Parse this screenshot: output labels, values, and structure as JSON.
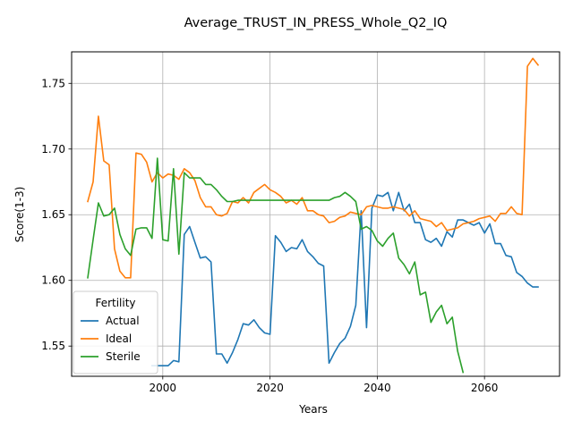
{
  "chart_data": {
    "type": "line",
    "title": "Average_TRUST_IN_PRESS_Whole_Q2_IQ",
    "xlabel": "Years",
    "ylabel": "Score(1-3)",
    "xlim": [
      1983,
      2074
    ],
    "ylim": [
      1.527,
      1.774
    ],
    "x_ticks": [
      2000,
      2020,
      2040,
      2060
    ],
    "y_ticks": [
      1.55,
      1.6,
      1.65,
      1.7,
      1.75
    ],
    "grid": true,
    "legend": {
      "title": "Fertility",
      "position": "lower-left"
    },
    "series": [
      {
        "name": "Actual",
        "color": "#1f77b4",
        "x": [
          1998,
          1999,
          2000,
          2001,
          2002,
          2003,
          2004,
          2005,
          2006,
          2007,
          2008,
          2009,
          2010,
          2011,
          2012,
          2013,
          2014,
          2015,
          2016,
          2017,
          2018,
          2019,
          2020,
          2021,
          2022,
          2023,
          2024,
          2025,
          2026,
          2027,
          2028,
          2029,
          2030,
          2031,
          2032,
          2033,
          2034,
          2035,
          2036,
          2037,
          2038,
          2039,
          2040,
          2041,
          2042,
          2043,
          2044,
          2045,
          2046,
          2047,
          2048,
          2049,
          2050,
          2051,
          2052,
          2053,
          2054,
          2055,
          2056,
          2057,
          2058,
          2059,
          2060,
          2061,
          2062,
          2063,
          2064,
          2065,
          2066,
          2067,
          2068,
          2069,
          2070
        ],
        "values": [
          1.535,
          1.535,
          1.535,
          1.535,
          1.539,
          1.538,
          1.635,
          1.641,
          1.629,
          1.617,
          1.618,
          1.614,
          1.544,
          1.544,
          1.537,
          1.545,
          1.555,
          1.567,
          1.566,
          1.57,
          1.564,
          1.56,
          1.559,
          1.634,
          1.629,
          1.622,
          1.625,
          1.624,
          1.631,
          1.622,
          1.618,
          1.613,
          1.611,
          1.537,
          1.545,
          1.552,
          1.556,
          1.565,
          1.581,
          1.653,
          1.564,
          1.655,
          1.665,
          1.664,
          1.667,
          1.653,
          1.667,
          1.653,
          1.658,
          1.644,
          1.644,
          1.631,
          1.629,
          1.632,
          1.626,
          1.637,
          1.633,
          1.646,
          1.646,
          1.644,
          1.642,
          1.644,
          1.636,
          1.643,
          1.628,
          1.628,
          1.619,
          1.618,
          1.606,
          1.603,
          1.598,
          1.595,
          1.595
        ]
      },
      {
        "name": "Ideal",
        "color": "#ff7f0e",
        "x": [
          1986,
          1987,
          1988,
          1989,
          1990,
          1991,
          1992,
          1993,
          1994,
          1995,
          1996,
          1997,
          1998,
          1999,
          2000,
          2001,
          2002,
          2003,
          2004,
          2005,
          2006,
          2007,
          2008,
          2009,
          2010,
          2011,
          2012,
          2013,
          2014,
          2015,
          2016,
          2017,
          2018,
          2019,
          2020,
          2021,
          2022,
          2023,
          2024,
          2025,
          2026,
          2027,
          2028,
          2029,
          2030,
          2031,
          2032,
          2033,
          2034,
          2035,
          2036,
          2037,
          2038,
          2039,
          2040,
          2041,
          2042,
          2043,
          2044,
          2045,
          2046,
          2047,
          2048,
          2049,
          2050,
          2051,
          2052,
          2053,
          2054,
          2055,
          2056,
          2057,
          2058,
          2059,
          2060,
          2061,
          2062,
          2063,
          2064,
          2065,
          2066,
          2067,
          2068,
          2069,
          2070
        ],
        "values": [
          1.66,
          1.675,
          1.725,
          1.691,
          1.688,
          1.624,
          1.607,
          1.602,
          1.602,
          1.697,
          1.696,
          1.69,
          1.675,
          1.682,
          1.678,
          1.681,
          1.68,
          1.677,
          1.685,
          1.682,
          1.676,
          1.663,
          1.656,
          1.656,
          1.65,
          1.649,
          1.651,
          1.66,
          1.659,
          1.663,
          1.659,
          1.667,
          1.67,
          1.673,
          1.669,
          1.667,
          1.664,
          1.659,
          1.661,
          1.658,
          1.663,
          1.653,
          1.653,
          1.65,
          1.649,
          1.644,
          1.645,
          1.648,
          1.649,
          1.652,
          1.651,
          1.65,
          1.656,
          1.657,
          1.656,
          1.655,
          1.655,
          1.656,
          1.655,
          1.654,
          1.649,
          1.653,
          1.647,
          1.646,
          1.645,
          1.641,
          1.644,
          1.638,
          1.639,
          1.64,
          1.643,
          1.644,
          1.645,
          1.647,
          1.648,
          1.649,
          1.645,
          1.651,
          1.651,
          1.656,
          1.651,
          1.65,
          1.763,
          1.769,
          1.764
        ]
      },
      {
        "name": "Sterile",
        "color": "#2ca02c",
        "x": [
          1986,
          1987,
          1988,
          1989,
          1990,
          1991,
          1992,
          1993,
          1994,
          1995,
          1996,
          1997,
          1998,
          1999,
          2000,
          2001,
          2002,
          2003,
          2004,
          2005,
          2006,
          2007,
          2008,
          2009,
          2010,
          2011,
          2012,
          2013,
          2014,
          2015,
          2016,
          2017,
          2018,
          2019,
          2020,
          2021,
          2022,
          2023,
          2024,
          2025,
          2026,
          2027,
          2028,
          2029,
          2030,
          2031,
          2032,
          2033,
          2034,
          2035,
          2036,
          2037,
          2038,
          2039,
          2040,
          2041,
          2042,
          2043,
          2044,
          2045,
          2046,
          2047,
          2048,
          2049,
          2050,
          2051,
          2052,
          2053,
          2054,
          2055,
          2056
        ],
        "values": [
          1.602,
          1.631,
          1.659,
          1.649,
          1.65,
          1.655,
          1.635,
          1.624,
          1.619,
          1.639,
          1.64,
          1.64,
          1.632,
          1.693,
          1.631,
          1.63,
          1.685,
          1.62,
          1.682,
          1.678,
          1.678,
          1.678,
          1.673,
          1.673,
          1.669,
          1.664,
          1.66,
          1.66,
          1.661,
          1.661,
          1.661,
          1.661,
          1.661,
          1.661,
          1.661,
          1.661,
          1.661,
          1.661,
          1.661,
          1.661,
          1.661,
          1.661,
          1.661,
          1.661,
          1.661,
          1.661,
          1.663,
          1.664,
          1.667,
          1.664,
          1.66,
          1.639,
          1.641,
          1.638,
          1.63,
          1.626,
          1.632,
          1.636,
          1.617,
          1.612,
          1.605,
          1.614,
          1.589,
          1.591,
          1.568,
          1.576,
          1.581,
          1.567,
          1.572,
          1.546,
          1.53
        ]
      }
    ]
  }
}
